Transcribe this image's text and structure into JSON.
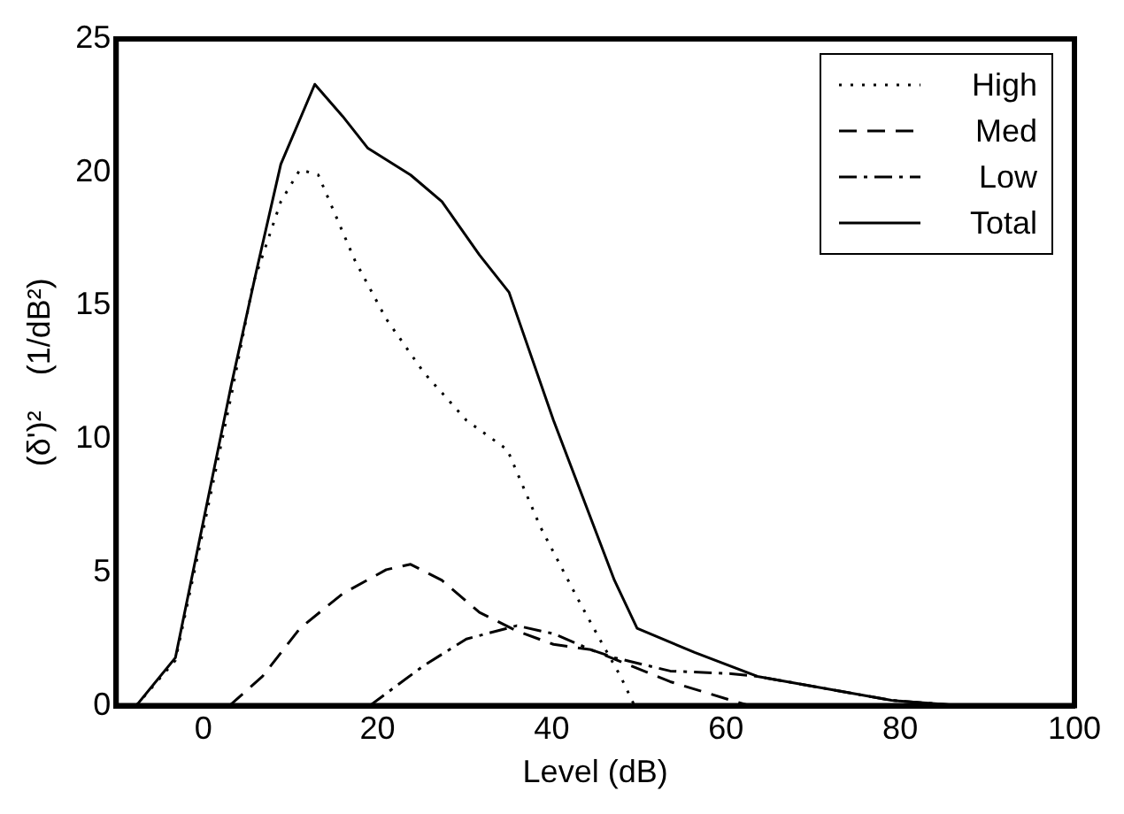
{
  "chart_data": {
    "type": "line",
    "xlabel": "Level (dB)",
    "ylabel": "(δ')²    (1/dB²)",
    "xlim": [
      -10,
      100
    ],
    "xticks": [
      0,
      20,
      40,
      60,
      80,
      100
    ],
    "ylim": [
      0,
      25
    ],
    "yticks": [
      0,
      5,
      10,
      15,
      20,
      25
    ],
    "grid": false,
    "legend": "top right",
    "marker": "none",
    "series": [
      {
        "name": "High",
        "color": "#000000",
        "line_style": "dotted",
        "x": [
          -7.7,
          -3.2,
          0,
          3.2,
          5.7,
          8.9,
          11.1,
          13.2,
          15.3,
          17.4,
          21,
          25.3,
          30.2,
          34.9,
          38.7,
          43,
          45.5,
          47.9,
          49.5
        ],
        "values": [
          0,
          1.7,
          6.6,
          11.6,
          15.8,
          18.9,
          20.1,
          19.9,
          18.3,
          16.7,
          14.5,
          12.5,
          10.7,
          9.6,
          6.7,
          4.0,
          2.5,
          1.1,
          0
        ]
      },
      {
        "name": "Med",
        "color": "#000000",
        "line_style": "dashed",
        "x": [
          3,
          6.8,
          11.1,
          16,
          21,
          23.8,
          27.4,
          31.7,
          36,
          40.2,
          44.5,
          53.6,
          60.6,
          62.8
        ],
        "values": [
          0,
          1.1,
          2.9,
          4.2,
          5.1,
          5.3,
          4.7,
          3.5,
          2.8,
          2.3,
          2.1,
          0.9,
          0.2,
          0
        ]
      },
      {
        "name": "Low",
        "color": "#000000",
        "line_style": "dashdot",
        "x": [
          19.1,
          25.3,
          30.2,
          36,
          40.2,
          44.5,
          47.2,
          53.6,
          60.6,
          63.6,
          79,
          87
        ],
        "values": [
          0,
          1.5,
          2.5,
          3.0,
          2.7,
          2.1,
          1.8,
          1.3,
          1.2,
          1.1,
          0.2,
          0
        ]
      },
      {
        "name": "Total",
        "color": "#000000",
        "line_style": "solid",
        "x": [
          -7.7,
          -3.2,
          0,
          3.2,
          6.1,
          8.9,
          12.8,
          16,
          18.9,
          23.8,
          27.4,
          31.7,
          35.1,
          40.2,
          47.2,
          49.8,
          56.4,
          63.6,
          79,
          87
        ],
        "values": [
          0,
          1.8,
          6.9,
          12.0,
          16.3,
          20.3,
          23.3,
          22.1,
          20.9,
          19.9,
          18.9,
          16.9,
          15.5,
          10.7,
          4.7,
          2.9,
          2.0,
          1.1,
          0.2,
          0
        ]
      }
    ]
  }
}
